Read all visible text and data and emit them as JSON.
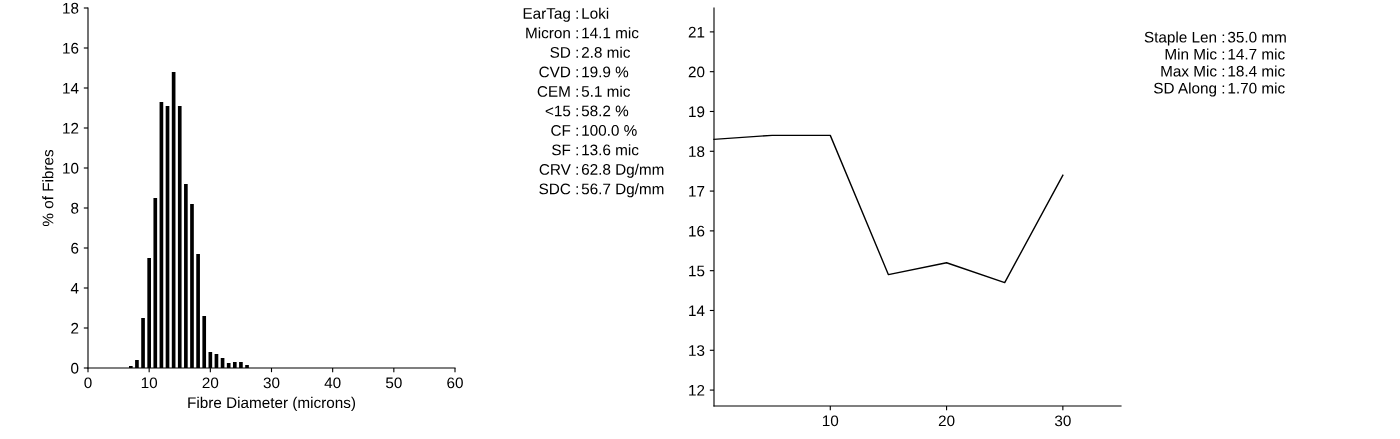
{
  "chart_data": [
    {
      "type": "histogram",
      "xlabel": "Fibre Diameter (microns)",
      "ylabel": "% of Fibres",
      "color": "#000000",
      "bins": [
        1.5,
        2.5,
        3.5,
        4.5,
        5.5,
        6.5,
        7.5,
        8.5,
        9.5,
        10.5,
        11.5,
        12.5,
        13.5,
        14.5,
        15.5,
        16.5,
        17.5,
        18.5,
        19.5,
        20.5,
        21.5,
        22.5,
        23.5,
        24.5,
        25.5,
        26.5
      ],
      "values": [
        null,
        null,
        null,
        null,
        null,
        0.1,
        0.4,
        2.5,
        5.5,
        8.5,
        13.3,
        13.1,
        14.8,
        13.1,
        9.2,
        8.2,
        5.7,
        2.6,
        0.8,
        0.7,
        0.5,
        0.25,
        0.3,
        0.3,
        0.15
      ],
      "xlim": [
        0,
        60
      ],
      "xticks": [
        0,
        10,
        20,
        30,
        40,
        50,
        60
      ],
      "ylim": [
        0,
        18
      ],
      "yticks": [
        0,
        2,
        4,
        6,
        8,
        10,
        12,
        14,
        16,
        18
      ],
      "grid": false,
      "legend": false
    },
    {
      "type": "other",
      "annotations": [
        "EarTag : Loki",
        "Micron :  14.1 mic",
        "SD :    2.8 mic",
        "CVD :  19.9 %",
        "CEM :    5.1 mic",
        "<15 :  58.2 %",
        "CF : 100.0 %",
        "SF :  13.6 mic",
        "CRV :  62.8 Dg/mm",
        "SDC :  56.7 Dg/mm"
      ]
    },
    {
      "type": "line",
      "x": [
        0,
        5,
        10,
        15,
        20,
        25,
        30
      ],
      "values": [
        18.3,
        18.4,
        18.4,
        14.9,
        15.2,
        14.7,
        17.4
      ],
      "color": "#000000",
      "xlim": [
        0,
        35
      ],
      "xticks": [
        10,
        20,
        30
      ],
      "ylim": [
        11.6,
        21.6
      ],
      "yticks": [
        12,
        13,
        14,
        15,
        16,
        17,
        18,
        19,
        20,
        21
      ],
      "grid": false,
      "legend": false,
      "marker": "none",
      "line_style": "solid"
    },
    {
      "type": "other",
      "annotations": [
        "Staple Len :  35.0 mm",
        "Min Mic :  14.7 mic",
        "Max Mic :  18.4 mic",
        "SD Along :  1.70 mic"
      ]
    }
  ]
}
